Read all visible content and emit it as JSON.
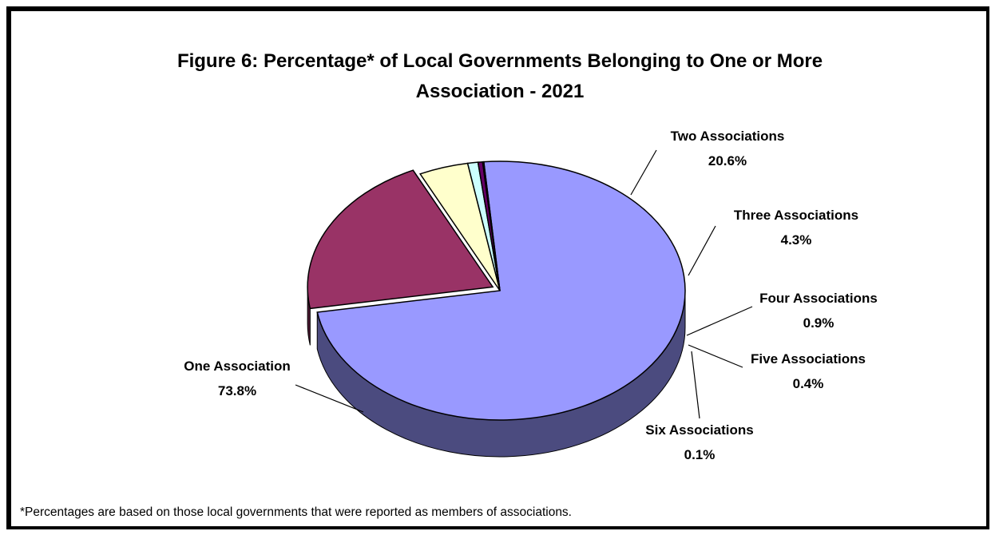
{
  "chart_data": {
    "type": "pie",
    "title_lines": [
      "Figure 6:  Percentage* of Local Governments Belonging to One or More",
      "Association - 2021"
    ],
    "slices": [
      {
        "label": "One Association",
        "value": 73.8,
        "value_label": "73.8%",
        "color": "#9999FF",
        "side_color": "#4B4B7F"
      },
      {
        "label": "Two Associations",
        "value": 20.6,
        "value_label": "20.6%",
        "color": "#993366",
        "side_color": "#4C1933"
      },
      {
        "label": "Three Associations",
        "value": 4.3,
        "value_label": "4.3%",
        "color": "#FFFFCC",
        "side_color": "#7F7F66"
      },
      {
        "label": "Four Associations",
        "value": 0.9,
        "value_label": "0.9%",
        "color": "#CCFFFF",
        "side_color": "#667F7F"
      },
      {
        "label": "Five Associations",
        "value": 0.4,
        "value_label": "0.4%",
        "color": "#660066",
        "side_color": "#330033"
      },
      {
        "label": "Six Associations",
        "value": 0.1,
        "value_label": "0.1%",
        "color": "#FF8080",
        "side_color": "#7F4040"
      }
    ],
    "exploded": "Two Associations",
    "style": "3d",
    "legend": "none"
  },
  "footnote": "*Percentages are based on those local governments that were reported as members of associations."
}
